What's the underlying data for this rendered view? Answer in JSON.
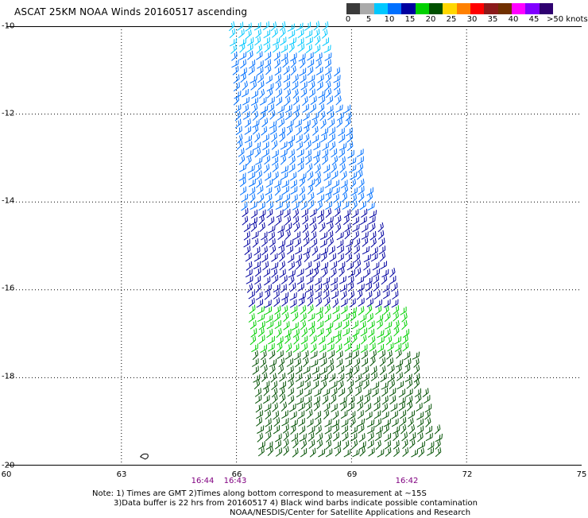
{
  "chart_data": {
    "type": "scatter",
    "title": "ASCAT 25KM NOAA Winds 20160517 ascending",
    "xlabel": "",
    "ylabel": "",
    "xlim": [
      60,
      75
    ],
    "ylim": [
      -20,
      -10
    ],
    "grid": true,
    "x_ticks": [
      "60",
      "63",
      "66",
      "69",
      "72",
      "75"
    ],
    "y_ticks": [
      "-10",
      "-12",
      "-14",
      "-16",
      "-18",
      "-20"
    ],
    "time_labels": [
      "16:44",
      "16:43",
      "16:42"
    ],
    "colorbar": {
      "labels": [
        "0",
        "5",
        "10",
        "15",
        "20",
        "25",
        "30",
        "35",
        "40",
        "45",
        ">50 knots"
      ],
      "colors": [
        "#3a3a3a",
        "#aaaaaa",
        "#00c8ff",
        "#0070ff",
        "#0000a0",
        "#00d000",
        "#005000",
        "#ffd700",
        "#ff8000",
        "#ff0000",
        "#8b1a1a",
        "#703000",
        "#ff00ff",
        "#8000ff",
        "#2e0070"
      ]
    },
    "swath": {
      "lat_range": [
        -10,
        -20
      ],
      "lon_east_edge_north": 68.2,
      "lon_east_edge_south": 71.4,
      "lon_west_edge_north": 65.8,
      "lon_west_edge_south": 66.6,
      "speed_bands_knots": [
        {
          "lat_from": -10.0,
          "lat_to": -10.7,
          "knots": "5-10",
          "color": "#00c8ff"
        },
        {
          "lat_from": -10.7,
          "lat_to": -14.2,
          "knots": "10-15",
          "color": "#0070ff"
        },
        {
          "lat_from": -14.2,
          "lat_to": -16.5,
          "knots": "15-20",
          "color": "#0000a0"
        },
        {
          "lat_from": -16.5,
          "lat_to": -17.5,
          "knots": "20-25",
          "color": "#00d000"
        },
        {
          "lat_from": -17.5,
          "lat_to": -20.0,
          "knots": "20-30",
          "color": "#005000"
        }
      ],
      "direction": "southeasterly"
    }
  },
  "footnote": {
    "line1": "Note: 1) Times are GMT 2)Times along bottom correspond to measurement at ~15S",
    "line2": "3)Data buffer is 22 hrs from 20160517 4) Black wind barbs indicate possible contamination",
    "line3": "NOAA/NESDIS/Center for Satellite Applications and Research"
  }
}
